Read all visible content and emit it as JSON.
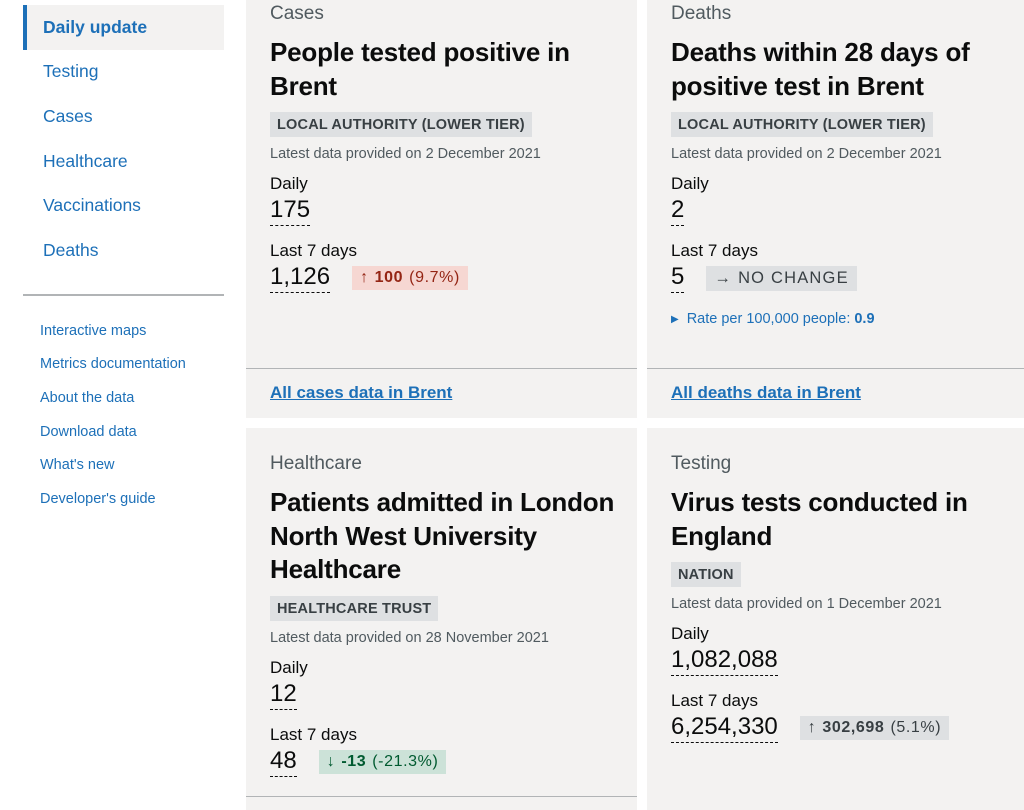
{
  "sidebar": {
    "primary": [
      "Daily update",
      "Testing",
      "Cases",
      "Healthcare",
      "Vaccinations",
      "Deaths"
    ],
    "secondary": [
      "Interactive maps",
      "Metrics documentation",
      "About the data",
      "Download data",
      "What's new",
      "Developer's guide"
    ]
  },
  "cards": {
    "cases": {
      "caption": "Cases",
      "title": "People tested positive in Brent",
      "tag": "LOCAL AUTHORITY (LOWER TIER)",
      "latest": "Latest data provided on 2 December 2021",
      "daily_label": "Daily",
      "daily_value": "175",
      "week_label": "Last 7 days",
      "week_value": "1,126",
      "change_arrow": "↑",
      "change_value": "100",
      "change_pct": "(9.7%)",
      "footer_link": "All cases data in Brent"
    },
    "deaths": {
      "caption": "Deaths",
      "title": "Deaths within 28 days of positive test in Brent",
      "tag": "LOCAL AUTHORITY (LOWER TIER)",
      "latest": "Latest data provided on 2 December 2021",
      "daily_label": "Daily",
      "daily_value": "2",
      "week_label": "Last 7 days",
      "week_value": "5",
      "change_arrow": "→",
      "change_text": "NO CHANGE",
      "rate_label": "Rate per 100,000 people:",
      "rate_value": "0.9",
      "footer_link": "All deaths data in Brent"
    },
    "healthcare": {
      "caption": "Healthcare",
      "title": "Patients admitted in London North West University Healthcare",
      "tag": "HEALTHCARE TRUST",
      "latest": "Latest data provided on 28 November 2021",
      "daily_label": "Daily",
      "daily_value": "12",
      "week_label": "Last 7 days",
      "week_value": "48",
      "change_arrow": "↓",
      "change_value": "-13",
      "change_pct": "(-21.3%)"
    },
    "testing": {
      "caption": "Testing",
      "title": "Virus tests conducted in England",
      "tag": "NATION",
      "latest": "Latest data provided on 1 December 2021",
      "daily_label": "Daily",
      "daily_value": "1,082,088",
      "week_label": "Last 7 days",
      "week_value": "6,254,330",
      "change_arrow": "↑",
      "change_value": "302,698",
      "change_pct": "(5.1%)"
    }
  }
}
